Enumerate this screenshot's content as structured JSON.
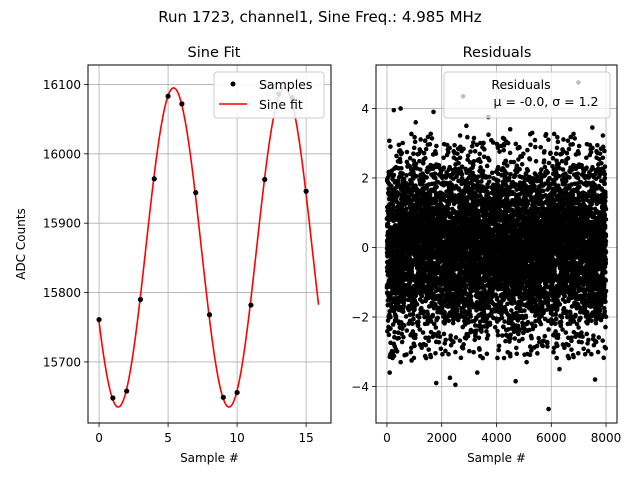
{
  "suptitle": "Run 1723, channel1, Sine Freq.: 4.985 MHz",
  "chart_data": [
    {
      "type": "line",
      "title": "Sine Fit",
      "xlabel": "Sample #",
      "ylabel": "ADC Counts",
      "xlim": [
        -0.8,
        16.8
      ],
      "ylim": [
        15612,
        16128
      ],
      "xticks": [
        0,
        5,
        10,
        15
      ],
      "yticks": [
        15700,
        15800,
        15900,
        16000,
        16100
      ],
      "grid": true,
      "legend": {
        "position": "top-right",
        "entries": [
          "Samples",
          "Sine fit"
        ]
      },
      "samples": {
        "name": "Samples",
        "x": [
          0,
          1,
          2,
          3,
          4,
          5,
          6,
          7,
          8,
          9,
          10,
          11,
          12,
          13,
          14,
          15
        ],
        "y": [
          15761,
          15648,
          15658,
          15790,
          15964,
          16083,
          16072,
          15944,
          15768,
          15649,
          15656,
          15782,
          15963,
          16086,
          16081,
          15946
        ]
      },
      "fit": {
        "name": "Sine fit",
        "model": {
          "offset": 15865,
          "amplitude": 230,
          "period": 8.025,
          "x_at_max": 5.4
        },
        "x_range": [
          0,
          15.9
        ]
      },
      "colors": {
        "samples": "#000000",
        "fit": "#ff0000"
      }
    },
    {
      "type": "scatter",
      "title": "Residuals",
      "xlabel": "Sample #",
      "ylabel": "",
      "xlim": [
        -400,
        8400
      ],
      "ylim": [
        -5.05,
        5.25
      ],
      "xticks": [
        0,
        2000,
        4000,
        6000,
        8000
      ],
      "yticks": [
        -4,
        -2,
        0,
        2,
        4
      ],
      "grid": true,
      "legend": {
        "position": "top-right",
        "lines": [
          "Residuals",
          "μ = -0.0, σ = 1.2"
        ]
      },
      "stats": {
        "n_points": 8000,
        "mean": 0.0,
        "std": 1.2
      },
      "outliers": [
        {
          "x": 6990,
          "y": 4.75
        },
        {
          "x": 2780,
          "y": 4.35
        },
        {
          "x": 500,
          "y": 4.0
        },
        {
          "x": 250,
          "y": 3.95
        },
        {
          "x": 1700,
          "y": 3.9
        },
        {
          "x": 3700,
          "y": 3.75
        },
        {
          "x": 1050,
          "y": 3.6
        },
        {
          "x": 2900,
          "y": 3.5
        },
        {
          "x": 4500,
          "y": 3.4
        },
        {
          "x": 7500,
          "y": 3.45
        },
        {
          "x": 5900,
          "y": -4.65
        },
        {
          "x": 2500,
          "y": -3.95
        },
        {
          "x": 4700,
          "y": -3.85
        },
        {
          "x": 1800,
          "y": -3.9
        },
        {
          "x": 7600,
          "y": -3.8
        },
        {
          "x": 2300,
          "y": -3.75
        },
        {
          "x": 3300,
          "y": -3.6
        },
        {
          "x": 100,
          "y": -3.6
        },
        {
          "x": 6300,
          "y": -3.5
        },
        {
          "x": 500,
          "y": -3.3
        },
        {
          "x": 900,
          "y": -3.25
        },
        {
          "x": 5100,
          "y": -3.3
        }
      ],
      "colors": {
        "points": "#000000"
      }
    }
  ]
}
